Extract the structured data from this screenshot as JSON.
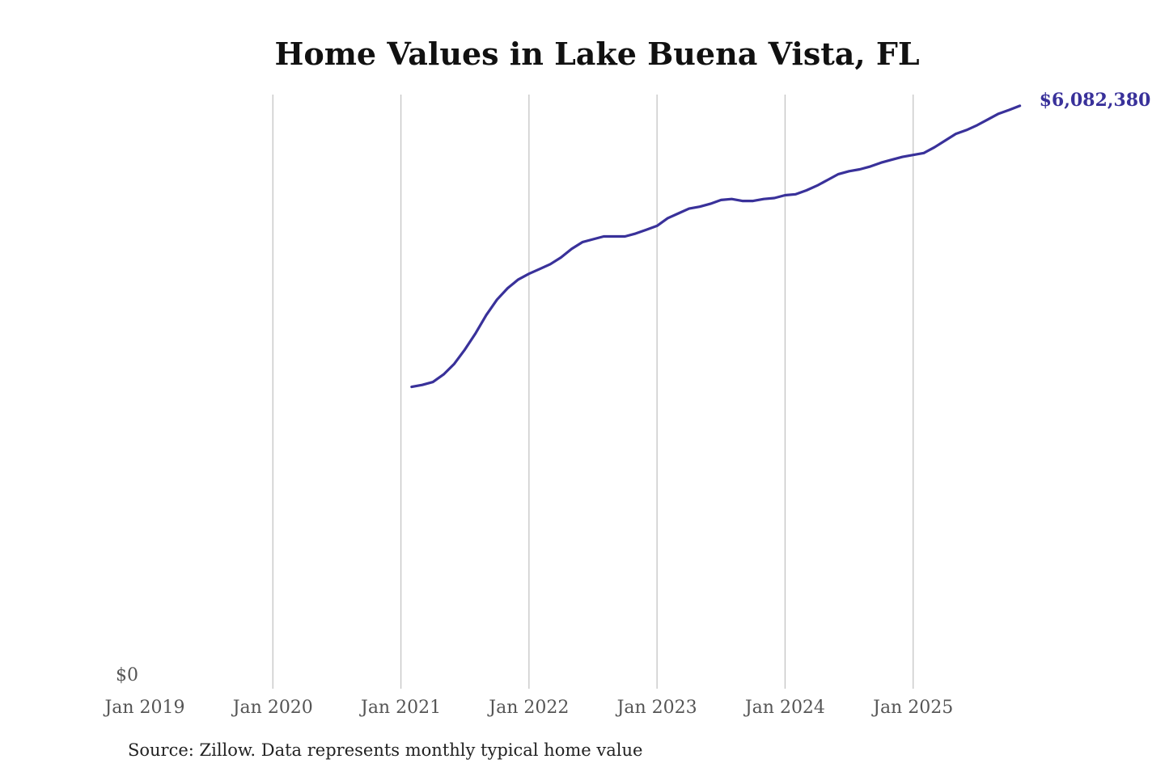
{
  "chart_data": {
    "type": "line",
    "title": "Home Values in Lake Buena Vista, FL",
    "source": "Source: Zillow. Data represents monthly typical home value",
    "xlabel": "",
    "ylabel": "",
    "x_ticks": [
      "Jan 2019",
      "Jan 2020",
      "Jan 2021",
      "Jan 2022",
      "Jan 2023",
      "Jan 2024",
      "Jan 2025"
    ],
    "y_ticks": [
      "$0"
    ],
    "xlim": [
      "2019-01",
      "2026-01"
    ],
    "ylim": [
      0,
      6200000
    ],
    "grid": "vertical",
    "line_color": "#39319a",
    "end_label": "$6,082,380",
    "series": [
      {
        "x": [
          "2021-02",
          "2021-03",
          "2021-04",
          "2021-05",
          "2021-06",
          "2021-07",
          "2021-08",
          "2021-09",
          "2021-10",
          "2021-11",
          "2021-12",
          "2022-01",
          "2022-02",
          "2022-03",
          "2022-04",
          "2022-05",
          "2022-06",
          "2022-07",
          "2022-08",
          "2022-09",
          "2022-10",
          "2022-11",
          "2022-12",
          "2023-01",
          "2023-02",
          "2023-03",
          "2023-04",
          "2023-05",
          "2023-06",
          "2023-07",
          "2023-08",
          "2023-09",
          "2023-10",
          "2023-11",
          "2023-12",
          "2024-01",
          "2024-02",
          "2024-03",
          "2024-04",
          "2024-05",
          "2024-06",
          "2024-07",
          "2024-08",
          "2024-09",
          "2024-10",
          "2024-11",
          "2024-12",
          "2025-01",
          "2025-02",
          "2025-03",
          "2025-04",
          "2025-05",
          "2025-06",
          "2025-07",
          "2025-08",
          "2025-09",
          "2025-10",
          "2025-11"
        ],
        "values": [
          3150000,
          3170000,
          3200000,
          3280000,
          3390000,
          3540000,
          3710000,
          3900000,
          4060000,
          4180000,
          4270000,
          4330000,
          4380000,
          4430000,
          4500000,
          4590000,
          4660000,
          4690000,
          4720000,
          4720000,
          4720000,
          4750000,
          4790000,
          4830000,
          4910000,
          4960000,
          5010000,
          5030000,
          5060000,
          5100000,
          5110000,
          5090000,
          5090000,
          5110000,
          5120000,
          5150000,
          5160000,
          5200000,
          5250000,
          5310000,
          5370000,
          5400000,
          5420000,
          5450000,
          5490000,
          5520000,
          5550000,
          5570000,
          5590000,
          5650000,
          5720000,
          5790000,
          5830000,
          5880000,
          5940000,
          6000000,
          6040000,
          6082380
        ]
      }
    ]
  }
}
